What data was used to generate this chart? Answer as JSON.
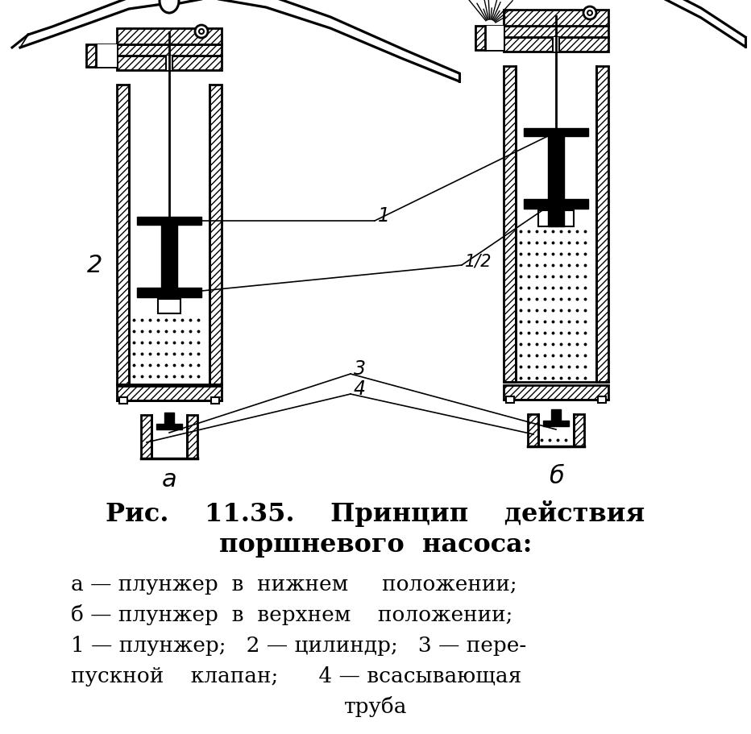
{
  "bg_color": "#ffffff",
  "line_color": "#000000",
  "title_line1": "Рис.    11.35.    Принцип    действия",
  "title_line2": "поршневого  насоса:",
  "cap1": "а — плунжер  в  нижнем     положении;",
  "cap2": "б — плунжер  в  верхнем    положении;",
  "cap3": "1 — плунжер;   2 — цилиндр;   3 — пере-",
  "cap4": "пускной    клапан;      4 — всасывающая",
  "cap5": "труба",
  "label_a": "а",
  "label_b": "б",
  "label_1": "1",
  "label_2": "2",
  "label_12": "1/2",
  "label_3": "3",
  "label_4": "4"
}
